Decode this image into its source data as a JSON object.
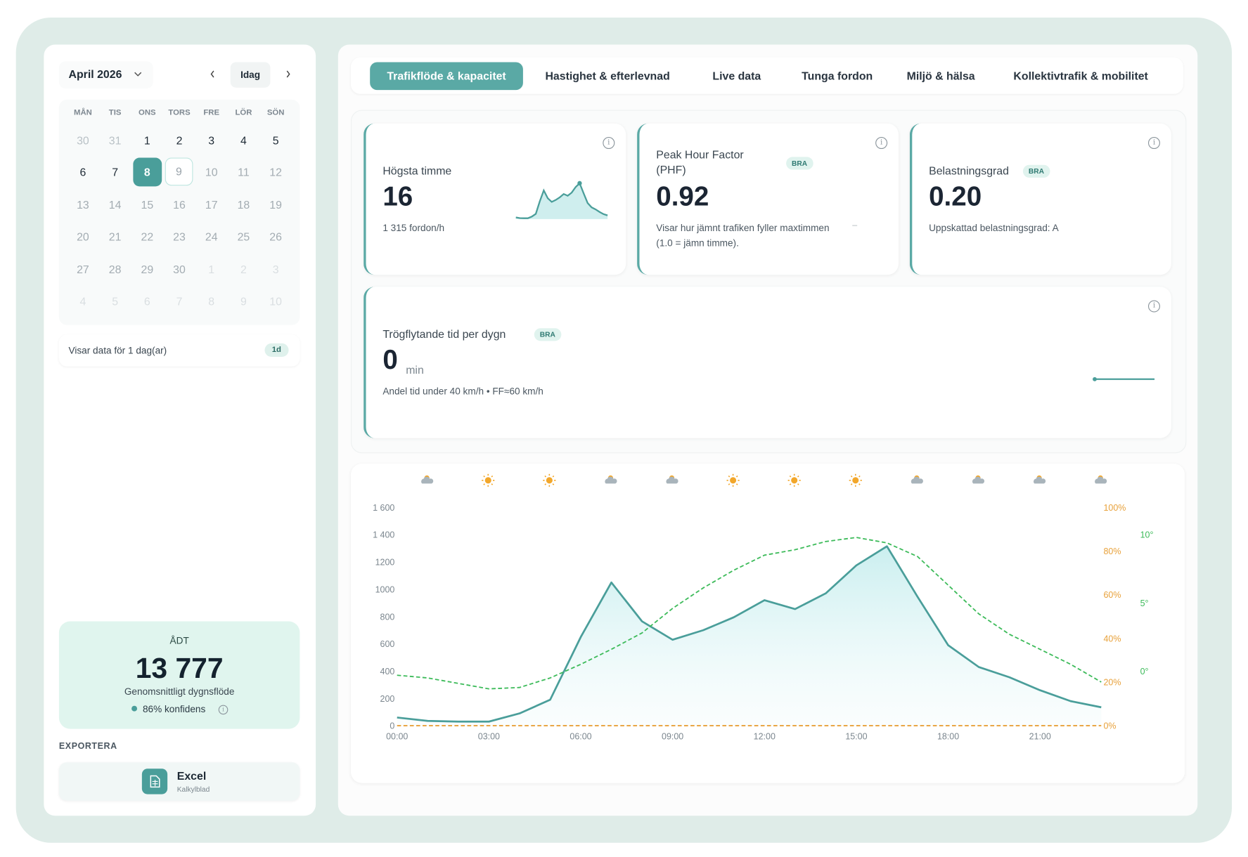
{
  "calendar": {
    "month": "April 2026",
    "today": "Idag",
    "weekdays": [
      "MÅN",
      "TIS",
      "ONS",
      "TORS",
      "FRE",
      "LÖR",
      "SÖN"
    ],
    "leading": [
      30,
      31
    ],
    "days": [
      1,
      2,
      3,
      4,
      5,
      6,
      7,
      8,
      9,
      10,
      11,
      12,
      13,
      14,
      15,
      16,
      17,
      18,
      19,
      20,
      21,
      22,
      23,
      24,
      25,
      26,
      27,
      28,
      29,
      30
    ],
    "trailing": [
      1,
      2,
      3,
      4,
      5,
      6,
      7,
      8,
      9,
      10
    ],
    "info": "Visar data för 1 dag(ar)",
    "badge": "1d"
  },
  "adt": {
    "label": "ÅDT",
    "value": "13 777",
    "sub": "Genomsnittligt dygnsflöde",
    "confidence": "86% konfidens"
  },
  "export": {
    "heading": "EXPORTERA",
    "button": "Excel",
    "sub": "Kalkylblad"
  },
  "tabs": [
    "Trafikflöde & kapacitet",
    "Hastighet & efterlevnad",
    "Live data",
    "Tunga fordon",
    "Miljö & hälsa",
    "Kollektivtrafik & mobilitet"
  ],
  "kpis": [
    {
      "label": "Högsta timme",
      "value": "16",
      "sub": "1 315 fordon/h"
    },
    {
      "label": "Peak Hour Factor (PHF)",
      "badge": "BRA",
      "value": "0.92",
      "sub": "Visar hur jämnt trafiken fyller maxtimmen (1.0 = jämn timme).",
      "trend": "–"
    },
    {
      "label": "Belastningsgrad",
      "badge": "BRA",
      "value": "0.20",
      "sub": "Uppskattad belastningsgrad: A"
    },
    {
      "label": "Trögflytande tid per dygn",
      "badge": "BRA",
      "value": "0",
      "unit": "min",
      "sub": "Andel tid under 40 km/h • FF≈60 km/h"
    }
  ],
  "chart_data": {
    "type": "line",
    "categories": [
      "00:00",
      null,
      null,
      "03:00",
      null,
      null,
      "06:00",
      null,
      null,
      "09:00",
      null,
      null,
      "12:00",
      null,
      null,
      "15:00",
      null,
      null,
      "18:00",
      null,
      null,
      "21:00",
      null,
      null
    ],
    "series": [
      {
        "color": "#4a9e9a",
        "values": [
          60,
          35,
          30,
          30,
          90,
          190,
          650,
          1050,
          765,
          630,
          700,
          795,
          920,
          855,
          970,
          1175,
          1315,
          945,
          590,
          430,
          355,
          260,
          180,
          135
        ]
      },
      {
        "color": "#e8a13a",
        "axis": "y2",
        "values": [
          0,
          0,
          0,
          0,
          0,
          0,
          0,
          0,
          0,
          0,
          0,
          0,
          0,
          0,
          0,
          0,
          0,
          0,
          0,
          0,
          0,
          0,
          0,
          0
        ]
      },
      {
        "color": "#3dbb5a",
        "axis": "y3",
        "values": [
          -0.3,
          -0.5,
          -0.9,
          -1.3,
          -1.2,
          -0.5,
          0.5,
          1.6,
          2.8,
          4.6,
          6.1,
          7.4,
          8.5,
          8.9,
          9.5,
          9.8,
          9.4,
          8.4,
          6.3,
          4.2,
          2.7,
          1.6,
          0.5,
          -0.8
        ]
      }
    ],
    "ylim": [
      0,
      1600
    ],
    "yticks": [
      0,
      200,
      400,
      600,
      800,
      1000,
      1200,
      {
        "value": 1400,
        "label": "1 400"
      },
      {
        "value": 1600,
        "label": "1 600"
      }
    ],
    "y2lim": [
      0,
      100
    ],
    "y2ticks": [
      {
        "value": 0,
        "label": "0%"
      },
      {
        "value": 20,
        "label": "20%"
      },
      {
        "value": 40,
        "label": "40%"
      },
      {
        "value": 60,
        "label": "60%"
      },
      {
        "value": 80,
        "label": "80%"
      },
      {
        "value": 100,
        "label": "100%"
      }
    ],
    "y3lim": [
      -4,
      12
    ],
    "y3ticks": [
      {
        "value": 0,
        "label": "0°"
      },
      {
        "value": 5,
        "label": "5°"
      },
      {
        "value": 10,
        "label": "10°"
      }
    ]
  }
}
